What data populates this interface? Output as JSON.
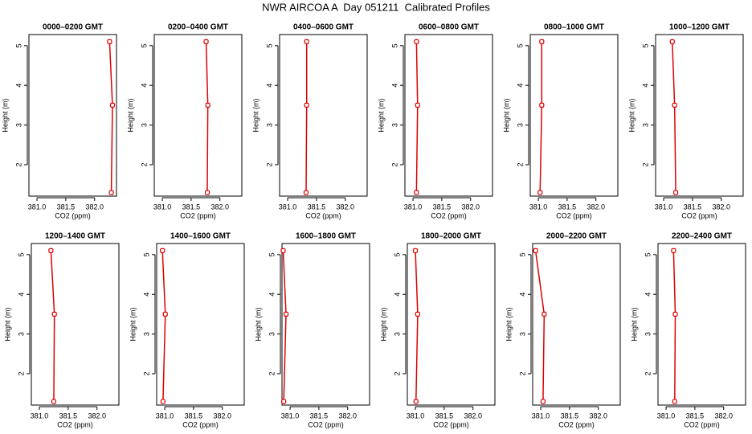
{
  "title": "NWR AIRCOA A  Day 051211  Calibrated Profiles",
  "chart_data": [
    {
      "type": "line",
      "title": "0000–0200 GMT",
      "x_label": "CO2 (ppm)",
      "y_label": "Height (m)",
      "xlim": [
        380.86,
        382.38
      ],
      "ylim": [
        1.21,
        5.28
      ],
      "xticks": [
        {
          "value": 381,
          "label": "381.0"
        },
        {
          "value": 381.5,
          "label": "381.5"
        },
        {
          "value": 382,
          "label": "382.0"
        }
      ],
      "yticks": [
        2,
        3,
        4,
        5
      ],
      "series": [
        {
          "color": "#e00000",
          "x": [
            382.26,
            382.31,
            382.29
          ],
          "values": [
            5.1,
            3.5,
            1.3
          ]
        }
      ]
    },
    {
      "type": "line",
      "title": "0200–0400 GMT",
      "x_label": "CO2 (ppm)",
      "y_label": "Height (m)",
      "xlim": [
        380.86,
        382.38
      ],
      "ylim": [
        1.21,
        5.28
      ],
      "xticks": [
        {
          "value": 381,
          "label": "381.0"
        },
        {
          "value": 381.5,
          "label": "381.5"
        },
        {
          "value": 382,
          "label": "382.0"
        }
      ],
      "yticks": [
        2,
        3,
        4,
        5
      ],
      "series": [
        {
          "color": "#e00000",
          "x": [
            381.76,
            381.79,
            381.78
          ],
          "values": [
            5.1,
            3.5,
            1.3
          ]
        }
      ]
    },
    {
      "type": "line",
      "title": "0400–0600 GMT",
      "x_label": "CO2 (ppm)",
      "y_label": "Height (m)",
      "xlim": [
        380.86,
        382.38
      ],
      "ylim": [
        1.21,
        5.28
      ],
      "xticks": [
        {
          "value": 381,
          "label": "381.0"
        },
        {
          "value": 381.5,
          "label": "381.5"
        },
        {
          "value": 382,
          "label": "382.0"
        }
      ],
      "yticks": [
        2,
        3,
        4,
        5
      ],
      "series": [
        {
          "color": "#e00000",
          "x": [
            381.33,
            381.33,
            381.32
          ],
          "values": [
            5.1,
            3.5,
            1.3
          ]
        }
      ]
    },
    {
      "type": "line",
      "title": "0600–0800 GMT",
      "x_label": "CO2 (ppm)",
      "y_label": "Height (m)",
      "xlim": [
        380.86,
        382.38
      ],
      "ylim": [
        1.21,
        5.28
      ],
      "xticks": [
        {
          "value": 381,
          "label": "381.0"
        },
        {
          "value": 381.5,
          "label": "381.5"
        },
        {
          "value": 382,
          "label": "382.0"
        }
      ],
      "yticks": [
        2,
        3,
        4,
        5
      ],
      "series": [
        {
          "color": "#e00000",
          "x": [
            381.06,
            381.08,
            381.06
          ],
          "values": [
            5.1,
            3.5,
            1.3
          ]
        }
      ]
    },
    {
      "type": "line",
      "title": "0800–1000 GMT",
      "x_label": "CO2 (ppm)",
      "y_label": "Height (m)",
      "xlim": [
        380.86,
        382.38
      ],
      "ylim": [
        1.21,
        5.28
      ],
      "xticks": [
        {
          "value": 381,
          "label": "381.0"
        },
        {
          "value": 381.5,
          "label": "381.5"
        },
        {
          "value": 382,
          "label": "382.0"
        }
      ],
      "yticks": [
        2,
        3,
        4,
        5
      ],
      "series": [
        {
          "color": "#e00000",
          "x": [
            381.06,
            381.06,
            381.03
          ],
          "values": [
            5.1,
            3.5,
            1.3
          ]
        }
      ]
    },
    {
      "type": "line",
      "title": "1000–1200 GMT",
      "x_label": "CO2 (ppm)",
      "y_label": "Height (m)",
      "xlim": [
        380.86,
        382.38
      ],
      "ylim": [
        1.21,
        5.28
      ],
      "xticks": [
        {
          "value": 381,
          "label": "381.0"
        },
        {
          "value": 381.5,
          "label": "381.5"
        },
        {
          "value": 382,
          "label": "382.0"
        }
      ],
      "yticks": [
        2,
        3,
        4,
        5
      ],
      "series": [
        {
          "color": "#e00000",
          "x": [
            381.15,
            381.19,
            381.21
          ],
          "values": [
            5.1,
            3.5,
            1.3
          ]
        }
      ]
    },
    {
      "type": "line",
      "title": "1200–1400 GMT",
      "x_label": "CO2 (ppm)",
      "y_label": "Height (m)",
      "xlim": [
        380.86,
        382.38
      ],
      "ylim": [
        1.21,
        5.28
      ],
      "xticks": [
        {
          "value": 381,
          "label": "381.0"
        },
        {
          "value": 381.5,
          "label": "381.5"
        },
        {
          "value": 382,
          "label": "382.0"
        }
      ],
      "yticks": [
        2,
        3,
        4,
        5
      ],
      "series": [
        {
          "color": "#e00000",
          "x": [
            381.2,
            381.26,
            381.25
          ],
          "values": [
            5.1,
            3.5,
            1.3
          ]
        }
      ]
    },
    {
      "type": "line",
      "title": "1400–1600 GMT",
      "x_label": "CO2 (ppm)",
      "y_label": "Height (m)",
      "xlim": [
        380.86,
        382.38
      ],
      "ylim": [
        1.21,
        5.28
      ],
      "xticks": [
        {
          "value": 381,
          "label": "381.0"
        },
        {
          "value": 381.5,
          "label": "381.5"
        },
        {
          "value": 382,
          "label": "382.0"
        }
      ],
      "yticks": [
        2,
        3,
        4,
        5
      ],
      "series": [
        {
          "color": "#e00000",
          "x": [
            380.96,
            381.01,
            380.97
          ],
          "values": [
            5.1,
            3.5,
            1.3
          ]
        }
      ]
    },
    {
      "type": "line",
      "title": "1600–1800 GMT",
      "x_label": "CO2 (ppm)",
      "y_label": "Height (m)",
      "xlim": [
        380.86,
        382.38
      ],
      "ylim": [
        1.21,
        5.28
      ],
      "xticks": [
        {
          "value": 381,
          "label": "381.0"
        },
        {
          "value": 381.5,
          "label": "381.5"
        },
        {
          "value": 382,
          "label": "382.0"
        }
      ],
      "yticks": [
        2,
        3,
        4,
        5
      ],
      "series": [
        {
          "color": "#e00000",
          "x": [
            380.88,
            380.93,
            380.89
          ],
          "values": [
            5.1,
            3.5,
            1.3
          ]
        }
      ]
    },
    {
      "type": "line",
      "title": "1800–2000 GMT",
      "x_label": "CO2 (ppm)",
      "y_label": "Height (m)",
      "xlim": [
        380.86,
        382.38
      ],
      "ylim": [
        1.21,
        5.28
      ],
      "xticks": [
        {
          "value": 381,
          "label": "381.0"
        },
        {
          "value": 381.5,
          "label": "381.5"
        },
        {
          "value": 382,
          "label": "382.0"
        }
      ],
      "yticks": [
        2,
        3,
        4,
        5
      ],
      "series": [
        {
          "color": "#e00000",
          "x": [
            381.0,
            381.04,
            381.01
          ],
          "values": [
            5.1,
            3.5,
            1.3
          ]
        }
      ]
    },
    {
      "type": "line",
      "title": "2000–2200 GMT",
      "x_label": "CO2 (ppm)",
      "y_label": "Height (m)",
      "xlim": [
        380.86,
        382.38
      ],
      "ylim": [
        1.21,
        5.28
      ],
      "xticks": [
        {
          "value": 381,
          "label": "381.0"
        },
        {
          "value": 381.5,
          "label": "381.5"
        },
        {
          "value": 382,
          "label": "382.0"
        }
      ],
      "yticks": [
        2,
        3,
        4,
        5
      ],
      "series": [
        {
          "color": "#e00000",
          "x": [
            380.91,
            381.06,
            381.04
          ],
          "values": [
            5.1,
            3.5,
            1.3
          ]
        }
      ]
    },
    {
      "type": "line",
      "title": "2200–2400 GMT",
      "x_label": "CO2 (ppm)",
      "y_label": "Height (m)",
      "xlim": [
        380.86,
        382.38
      ],
      "ylim": [
        1.21,
        5.28
      ],
      "xticks": [
        {
          "value": 381,
          "label": "381.0"
        },
        {
          "value": 381.5,
          "label": "381.5"
        },
        {
          "value": 382,
          "label": "382.0"
        }
      ],
      "yticks": [
        2,
        3,
        4,
        5
      ],
      "series": [
        {
          "color": "#e00000",
          "x": [
            381.13,
            381.16,
            381.15
          ],
          "values": [
            5.1,
            3.5,
            1.3
          ]
        }
      ]
    }
  ]
}
